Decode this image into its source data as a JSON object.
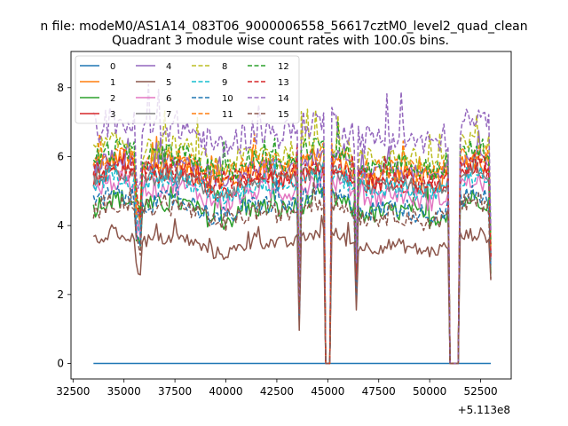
{
  "chart_data": {
    "type": "line",
    "suptitle": "n file: modeM0/AS1A14_083T06_9000006558_56617cztM0_level2_quad_clean",
    "title": "Quadrant 3 module wise count rates with 100.0s bins.",
    "xlabel": "",
    "ylabel": "",
    "x_offset_label": "+5.113e8",
    "xlim": [
      32400,
      54000
    ],
    "ylim": [
      -0.45,
      9.05
    ],
    "x_ticks": [
      32500,
      35000,
      37500,
      40000,
      42500,
      45000,
      47500,
      50000,
      52500
    ],
    "x_tick_labels": [
      "32500",
      "35000",
      "37500",
      "40000",
      "42500",
      "45000",
      "47500",
      "50000",
      "52500"
    ],
    "y_ticks": [
      0,
      2,
      4,
      6,
      8
    ],
    "y_tick_labels": [
      "0",
      "2",
      "4",
      "6",
      "8"
    ],
    "x_start": 33500,
    "x_end": 53000,
    "bin_width": 100,
    "gaps": [
      [
        44900,
        45100
      ],
      [
        51000,
        51400
      ]
    ],
    "dips": [
      {
        "x": 43600,
        "depth": 0.72
      },
      {
        "x": 46400,
        "depth": 0.55
      },
      {
        "x": 53000,
        "depth": 0.45
      }
    ],
    "grid": false,
    "legend_position": "top-left",
    "series": [
      {
        "name": "0",
        "color": "#1f77b4",
        "dashed": false,
        "base": 0.0,
        "noise": 0.0,
        "constant": true
      },
      {
        "name": "1",
        "color": "#ff7f0e",
        "dashed": false,
        "base": 5.6,
        "noise": 0.35
      },
      {
        "name": "2",
        "color": "#2ca02c",
        "dashed": false,
        "base": 4.5,
        "noise": 0.3
      },
      {
        "name": "3",
        "color": "#d62728",
        "dashed": false,
        "base": 5.3,
        "noise": 0.25
      },
      {
        "name": "4",
        "color": "#9467bd",
        "dashed": false,
        "base": 5.7,
        "noise": 0.25
      },
      {
        "name": "5",
        "color": "#8c564b",
        "dashed": false,
        "base": 3.5,
        "noise": 0.2
      },
      {
        "name": "6",
        "color": "#e377c2",
        "dashed": false,
        "base": 5.0,
        "noise": 0.3
      },
      {
        "name": "7",
        "color": "#7f7f7f",
        "dashed": false,
        "base": 5.3,
        "noise": 0.25
      },
      {
        "name": "8",
        "color": "#bcbd22",
        "dashed": true,
        "base": 6.1,
        "noise": 0.35
      },
      {
        "name": "9",
        "color": "#17becf",
        "dashed": true,
        "base": 5.2,
        "noise": 0.3
      },
      {
        "name": "10",
        "color": "#1f77b4",
        "dashed": true,
        "base": 4.6,
        "noise": 0.3
      },
      {
        "name": "11",
        "color": "#ff7f0e",
        "dashed": true,
        "base": 5.8,
        "noise": 0.3
      },
      {
        "name": "12",
        "color": "#2ca02c",
        "dashed": true,
        "base": 5.9,
        "noise": 0.35
      },
      {
        "name": "13",
        "color": "#d62728",
        "dashed": true,
        "base": 5.5,
        "noise": 0.3
      },
      {
        "name": "14",
        "color": "#9467bd",
        "dashed": true,
        "base": 6.7,
        "noise": 0.45
      },
      {
        "name": "15",
        "color": "#8c564b",
        "dashed": true,
        "base": 4.4,
        "noise": 0.3
      }
    ]
  }
}
